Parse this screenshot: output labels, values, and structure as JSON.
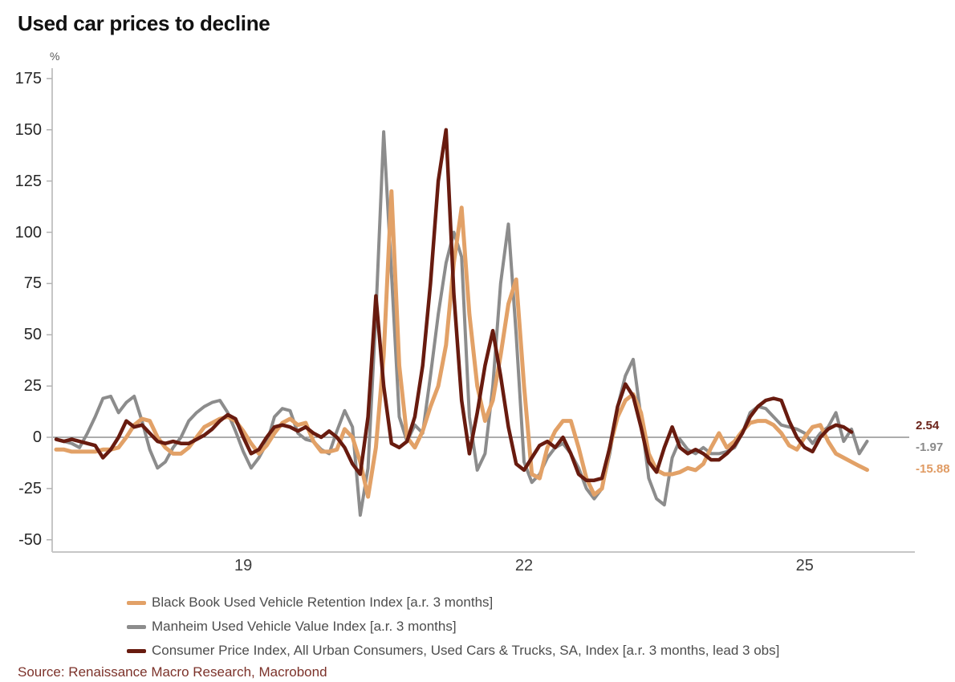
{
  "title": "Used car prices to decline",
  "source": "Source: Renaissance Macro Research, Macrobond",
  "chart_data": {
    "type": "line",
    "title": "Used car prices to decline",
    "xlabel": "",
    "ylabel": "%",
    "x_start": "2017-01",
    "x_step_months": 1,
    "ylim": [
      -50,
      175
    ],
    "grid": false,
    "zero_line": true,
    "legend_position": "bottom-left",
    "x_axis": {
      "tick_labels": [
        "19",
        "22",
        "25"
      ],
      "ticks": [
        {
          "label": "19",
          "month_index": 24
        },
        {
          "label": "22",
          "month_index": 60
        },
        {
          "label": "25",
          "month_index": 96
        }
      ]
    },
    "y_axis": {
      "unit": "%",
      "ticks": [
        175,
        150,
        125,
        100,
        75,
        50,
        25,
        0,
        -25,
        -50
      ]
    },
    "series": [
      {
        "name": "Black Book Used Vehicle Retention Index [a.r. 3 months]",
        "color": "#E2A167",
        "last_value": -15.88,
        "values": [
          -6,
          -6,
          -7,
          -7,
          -7,
          -7,
          -6,
          -6,
          -5,
          0,
          6,
          9,
          8,
          0,
          -5,
          -8,
          -8,
          -5,
          0,
          5,
          7,
          9,
          10,
          8,
          3,
          -3,
          -8,
          -4,
          2,
          7,
          9,
          6,
          7,
          -2,
          -7,
          -7,
          -6,
          4,
          0,
          -12,
          -29,
          -5,
          40,
          120,
          35,
          0,
          -5,
          3,
          15,
          25,
          45,
          85,
          112,
          60,
          25,
          8,
          18,
          40,
          65,
          77,
          25,
          -18,
          -20,
          -5,
          3,
          8,
          8,
          -5,
          -20,
          -28,
          -25,
          -5,
          10,
          18,
          21,
          12,
          -8,
          -16,
          -18,
          -18,
          -17,
          -15,
          -16,
          -13,
          -5,
          2,
          -5,
          -2,
          3,
          7,
          8,
          8,
          6,
          2,
          -4,
          -6,
          0,
          5,
          6,
          -2,
          -8,
          -10,
          -12,
          -14,
          -15.88
        ]
      },
      {
        "name": "Manheim Used Vehicle Value Index [a.r. 3 months]",
        "color": "#8C8C8C",
        "last_value": -1.97,
        "values": [
          -1,
          -2,
          -3,
          -5,
          2,
          10,
          19,
          20,
          12,
          17,
          20,
          8,
          -6,
          -15,
          -12,
          -5,
          0,
          8,
          12,
          15,
          17,
          18,
          12,
          3,
          -7,
          -15,
          -10,
          -3,
          10,
          14,
          13,
          2,
          -1,
          -2,
          -6,
          -8,
          3,
          13,
          5,
          -38,
          -15,
          60,
          149,
          80,
          10,
          -2,
          6,
          2,
          30,
          60,
          85,
          100,
          88,
          10,
          -16,
          -8,
          25,
          75,
          104,
          50,
          -12,
          -22,
          -18,
          -10,
          -5,
          -3,
          -8,
          -15,
          -25,
          -30,
          -25,
          -8,
          15,
          30,
          38,
          10,
          -20,
          -30,
          -33,
          -10,
          -1,
          -6,
          -8,
          -5,
          -8,
          -8,
          -7,
          -5,
          2,
          12,
          15,
          14,
          10,
          6,
          5,
          4,
          2,
          -3,
          2,
          5,
          12,
          -2,
          4,
          -8,
          -1.97
        ]
      },
      {
        "name": "Consumer Price Index, All Urban Consumers, Used Cars & Trucks, SA, Index [a.r. 3 months, lead 3 obs]",
        "color": "#681B0F",
        "last_value": 2.54,
        "values": [
          -1,
          -2,
          -1,
          -2,
          -3,
          -4,
          -10,
          -6,
          0,
          8,
          5,
          6,
          2,
          -2,
          -3,
          -2,
          -3,
          -3,
          -1,
          1,
          4,
          8,
          11,
          9,
          0,
          -8,
          -6,
          0,
          5,
          6,
          5,
          3,
          5,
          2,
          0,
          3,
          0,
          -5,
          -13,
          -18,
          10,
          69,
          25,
          -3,
          -5,
          -2,
          10,
          35,
          75,
          125,
          150,
          70,
          18,
          -8,
          12,
          35,
          52,
          30,
          5,
          -13,
          -16,
          -10,
          -4,
          -2,
          -5,
          0,
          -8,
          -18,
          -21,
          -21,
          -20,
          -5,
          15,
          26,
          20,
          5,
          -12,
          -17,
          -5,
          5,
          -5,
          -8,
          -6,
          -8,
          -11,
          -11,
          -8,
          -4,
          2,
          10,
          15,
          18,
          19,
          18,
          8,
          0,
          -5,
          -7,
          0,
          4,
          6,
          5,
          2.54,
          null,
          null
        ]
      }
    ],
    "end_labels": [
      {
        "text": "2.54",
        "color": "#6B231A"
      },
      {
        "text": "-1.97",
        "color": "#8A8A8A"
      },
      {
        "text": "-15.88",
        "color": "#E09B63"
      }
    ]
  }
}
